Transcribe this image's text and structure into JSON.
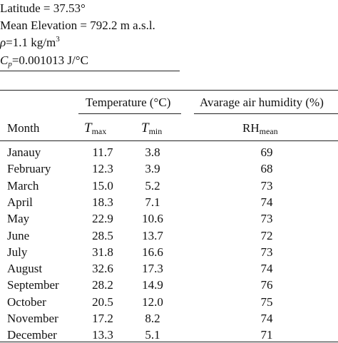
{
  "header": {
    "latitude": "Latitude = 37.53°",
    "elevation": "Mean Elevation = 792.2 m a.s.l.",
    "rho_symbol": "ρ",
    "rho_value": "=1.1 kg/m",
    "rho_exp": "3",
    "cp_symbol": "C",
    "cp_sub": "p",
    "cp_value": "=0.001013 J/°C"
  },
  "table": {
    "group_headers": {
      "temperature": "Temperature (°C)",
      "humidity": "Avarage air humidity (%)"
    },
    "columns": {
      "month": "Month",
      "tmax_symbol": "T",
      "tmax_sub": "max",
      "tmin_symbol": "T",
      "tmin_sub": "min",
      "rh_symbol": "RH",
      "rh_sub": "mean"
    },
    "rows": [
      {
        "month": "Janauy",
        "tmax": "11.7",
        "tmin": "3.8",
        "rh": "69"
      },
      {
        "month": "February",
        "tmax": "12.3",
        "tmin": "3.9",
        "rh": "68"
      },
      {
        "month": "March",
        "tmax": "15.0",
        "tmin": "5.2",
        "rh": "73"
      },
      {
        "month": "April",
        "tmax": "18.3",
        "tmin": "7.1",
        "rh": "74"
      },
      {
        "month": "May",
        "tmax": "22.9",
        "tmin": "10.6",
        "rh": "73"
      },
      {
        "month": "June",
        "tmax": "28.5",
        "tmin": "13.7",
        "rh": "72"
      },
      {
        "month": "July",
        "tmax": "31.8",
        "tmin": "16.6",
        "rh": "73"
      },
      {
        "month": "August",
        "tmax": "32.6",
        "tmin": "17.3",
        "rh": "74"
      },
      {
        "month": "September",
        "tmax": "28.2",
        "tmin": "14.9",
        "rh": "76"
      },
      {
        "month": "October",
        "tmax": "20.5",
        "tmin": "12.0",
        "rh": "75"
      },
      {
        "month": "November",
        "tmax": "17.2",
        "tmin": "8.2",
        "rh": "74"
      },
      {
        "month": "December",
        "tmax": "13.3",
        "tmin": "5.1",
        "rh": "71"
      }
    ]
  }
}
